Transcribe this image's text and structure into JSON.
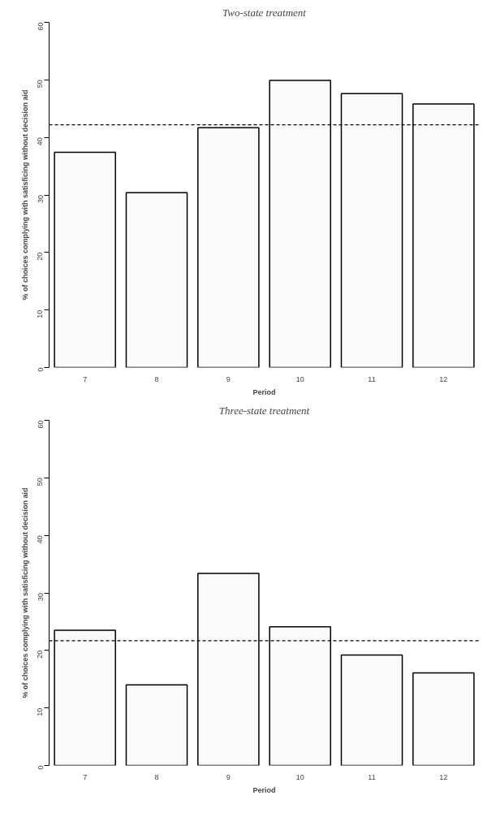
{
  "chart_data": [
    {
      "type": "bar",
      "title": "Two-state treatment",
      "xlabel": "Period",
      "ylabel": "% of choices complying with satisficing without decision aid",
      "categories": [
        "7",
        "8",
        "9",
        "10",
        "11",
        "12"
      ],
      "values": [
        37.4,
        30.4,
        41.7,
        49.9,
        47.6,
        45.8
      ],
      "color": "#fafafa",
      "ylim": [
        0,
        60
      ],
      "yticks": [
        0,
        10,
        20,
        30,
        40,
        50,
        60
      ],
      "grid": false,
      "ref_lines": [
        {
          "axis": "y",
          "value": 42.2,
          "line_style": "dashed",
          "color": "#000000"
        }
      ]
    },
    {
      "type": "bar",
      "title": "Three-state treatment",
      "xlabel": "Period",
      "ylabel": "% of choices complying with satisficing without decision aid",
      "categories": [
        "7",
        "8",
        "9",
        "10",
        "11",
        "12"
      ],
      "values": [
        23.5,
        14.0,
        33.4,
        24.1,
        19.2,
        16.1
      ],
      "color": "#fafafa",
      "ylim": [
        0,
        60
      ],
      "yticks": [
        0,
        10,
        20,
        30,
        40,
        50,
        60
      ],
      "grid": false,
      "ref_lines": [
        {
          "axis": "y",
          "value": 21.7,
          "line_style": "dashed",
          "color": "#000000"
        }
      ]
    }
  ]
}
